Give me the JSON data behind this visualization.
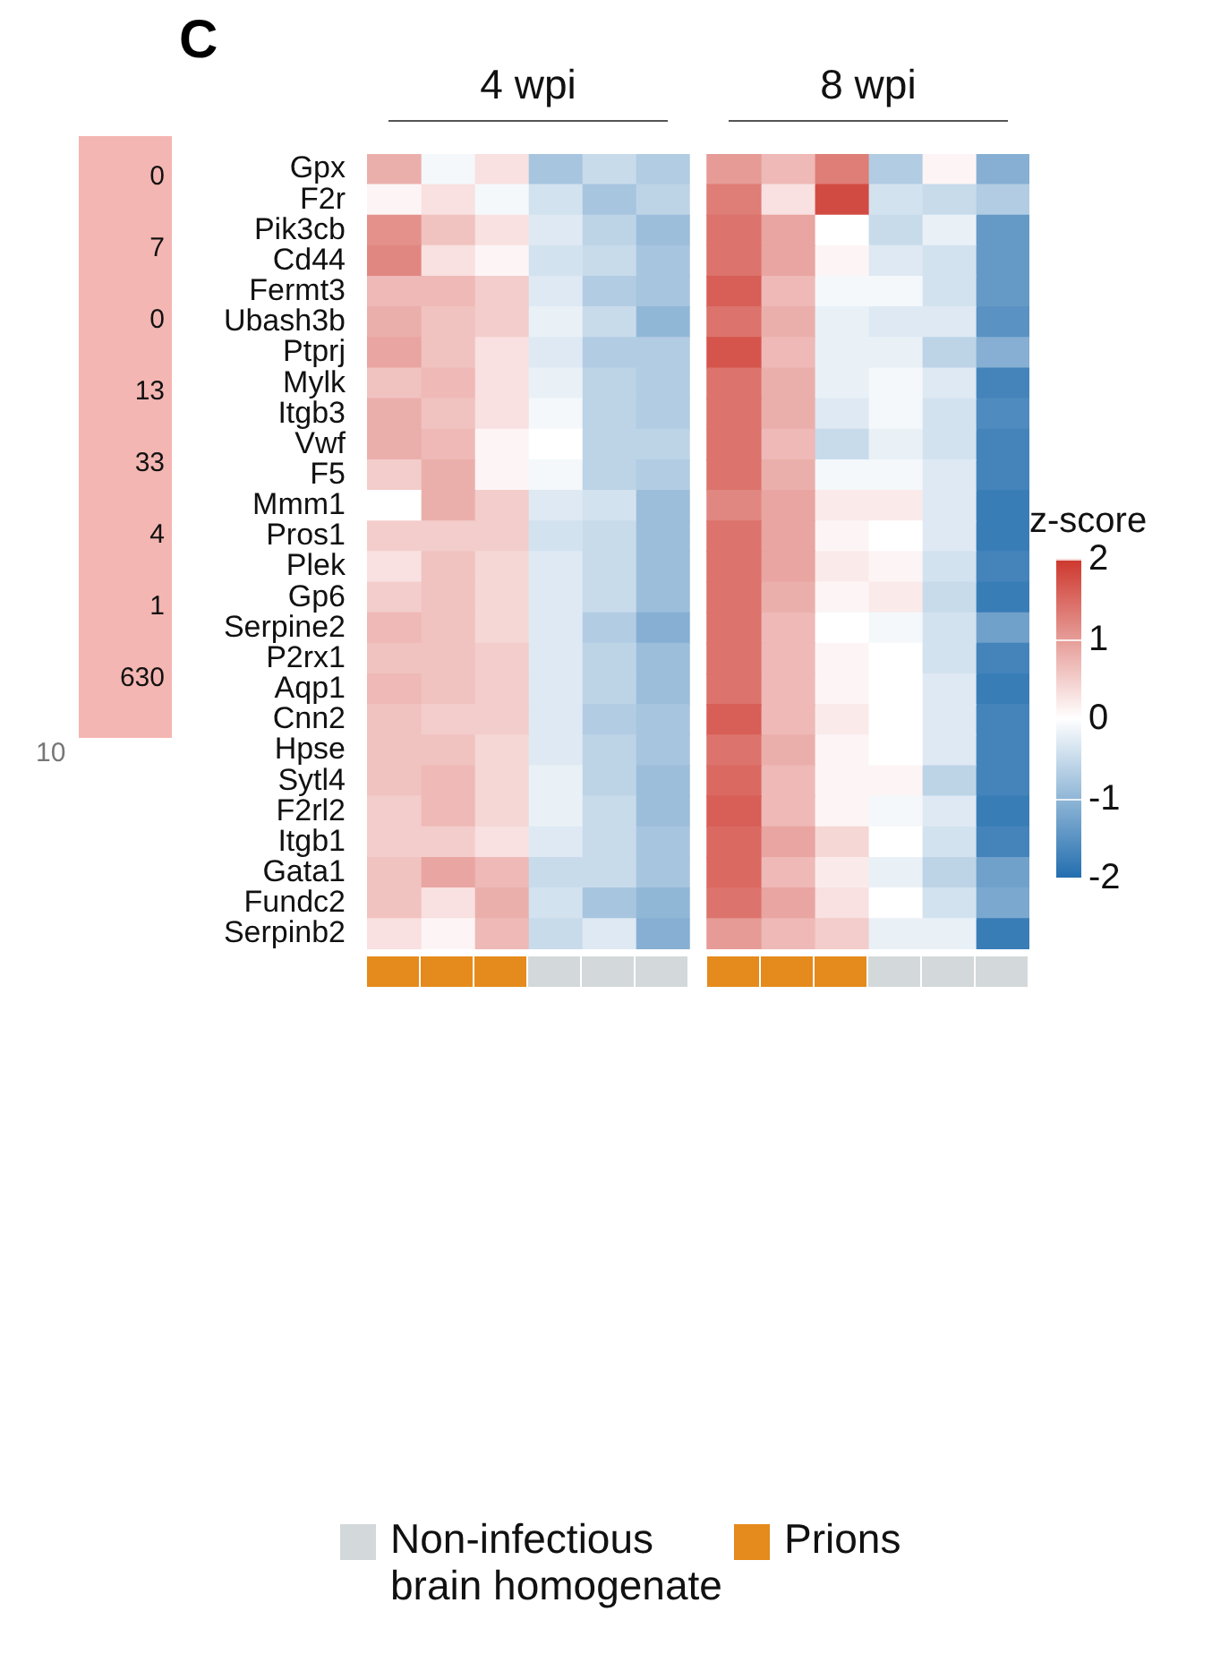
{
  "chart_data": [
    {
      "type": "other",
      "annotations": [
        "0",
        "7",
        "0",
        "13",
        "33",
        "4",
        "1",
        "630",
        "10"
      ]
    },
    {
      "type": "heatmap",
      "annotations": [
        "C",
        "4 wpi",
        "8 wpi",
        "Non-infectious brain homogenate",
        "Prions"
      ],
      "clabel": "z-score",
      "tick_labels": "y",
      "categories": [
        null,
        null,
        null,
        null,
        null,
        null,
        null,
        null,
        null,
        null,
        null,
        null
      ],
      "y_categories": [
        "Gpx",
        "F2r",
        "Pik3cb",
        "Cd44",
        "Fermt3",
        "Ubash3b",
        "Ptprj",
        "Mylk",
        "Itgb3",
        "Vwf",
        "F5",
        "Mmm1",
        "Pros1",
        "Plek",
        "Gp6",
        "Serpine2",
        "P2rx1",
        "Aqp1",
        "Cnn2",
        "Hpse",
        "Sytl4",
        "F2rl2",
        "Itgb1",
        "Gata1",
        "Fundc2",
        "Serpinb2"
      ],
      "cells": [
        [
          0.8,
          -0.1,
          0.3,
          -0.8,
          -0.5,
          -0.7,
          1.0,
          0.7,
          1.3,
          -0.7,
          0.1,
          -1.1
        ],
        [
          0.1,
          0.3,
          -0.1,
          -0.4,
          -0.8,
          -0.6,
          1.3,
          0.3,
          1.8,
          -0.4,
          -0.5,
          -0.7
        ],
        [
          1.1,
          0.6,
          0.3,
          -0.3,
          -0.6,
          -0.9,
          1.4,
          0.9,
          0.0,
          -0.5,
          -0.2,
          -1.4
        ],
        [
          1.2,
          0.3,
          0.1,
          -0.4,
          -0.5,
          -0.8,
          1.4,
          0.9,
          0.1,
          -0.3,
          -0.4,
          -1.4
        ],
        [
          0.7,
          0.7,
          0.5,
          -0.3,
          -0.7,
          -0.8,
          1.6,
          0.7,
          -0.1,
          -0.1,
          -0.4,
          -1.4
        ],
        [
          0.8,
          0.6,
          0.5,
          -0.2,
          -0.5,
          -1.0,
          1.4,
          0.8,
          -0.2,
          -0.3,
          -0.3,
          -1.5
        ],
        [
          0.9,
          0.6,
          0.3,
          -0.3,
          -0.7,
          -0.7,
          1.7,
          0.7,
          -0.2,
          -0.2,
          -0.6,
          -1.1
        ],
        [
          0.6,
          0.7,
          0.3,
          -0.2,
          -0.6,
          -0.7,
          1.4,
          0.8,
          -0.2,
          -0.1,
          -0.3,
          -1.7
        ],
        [
          0.8,
          0.6,
          0.3,
          -0.1,
          -0.6,
          -0.7,
          1.4,
          0.8,
          -0.3,
          -0.1,
          -0.4,
          -1.6
        ],
        [
          0.8,
          0.7,
          0.1,
          0.0,
          -0.6,
          -0.6,
          1.4,
          0.7,
          -0.5,
          -0.2,
          -0.4,
          -1.7
        ],
        [
          0.5,
          0.8,
          0.1,
          -0.1,
          -0.6,
          -0.7,
          1.4,
          0.8,
          -0.1,
          -0.1,
          -0.3,
          -1.7
        ],
        [
          0.0,
          0.8,
          0.5,
          -0.3,
          -0.4,
          -0.9,
          1.2,
          0.9,
          0.2,
          0.2,
          -0.3,
          -1.8
        ],
        [
          0.5,
          0.5,
          0.5,
          -0.4,
          -0.5,
          -0.9,
          1.4,
          0.9,
          0.1,
          0.0,
          -0.3,
          -1.8
        ],
        [
          0.3,
          0.6,
          0.4,
          -0.3,
          -0.5,
          -0.9,
          1.4,
          0.9,
          0.2,
          0.1,
          -0.4,
          -1.7
        ],
        [
          0.5,
          0.6,
          0.4,
          -0.3,
          -0.5,
          -0.9,
          1.4,
          0.8,
          0.1,
          0.2,
          -0.5,
          -1.8
        ],
        [
          0.7,
          0.6,
          0.4,
          -0.3,
          -0.7,
          -1.1,
          1.4,
          0.7,
          0.0,
          -0.1,
          -0.4,
          -1.3
        ],
        [
          0.6,
          0.6,
          0.5,
          -0.3,
          -0.6,
          -0.9,
          1.4,
          0.7,
          0.1,
          0.0,
          -0.4,
          -1.7
        ],
        [
          0.7,
          0.6,
          0.5,
          -0.3,
          -0.6,
          -0.9,
          1.4,
          0.7,
          0.1,
          0.0,
          -0.3,
          -1.8
        ],
        [
          0.6,
          0.5,
          0.5,
          -0.3,
          -0.7,
          -0.8,
          1.6,
          0.7,
          0.2,
          0.0,
          -0.3,
          -1.7
        ],
        [
          0.6,
          0.6,
          0.4,
          -0.3,
          -0.6,
          -0.8,
          1.4,
          0.8,
          0.1,
          0.0,
          -0.3,
          -1.7
        ],
        [
          0.6,
          0.7,
          0.4,
          -0.2,
          -0.6,
          -0.9,
          1.5,
          0.7,
          0.1,
          0.1,
          -0.6,
          -1.7
        ],
        [
          0.5,
          0.7,
          0.4,
          -0.2,
          -0.5,
          -0.9,
          1.6,
          0.7,
          0.1,
          -0.1,
          -0.3,
          -1.8
        ],
        [
          0.5,
          0.5,
          0.3,
          -0.3,
          -0.5,
          -0.8,
          1.5,
          0.9,
          0.4,
          0.0,
          -0.4,
          -1.7
        ],
        [
          0.6,
          0.9,
          0.7,
          -0.5,
          -0.5,
          -0.8,
          1.5,
          0.7,
          0.2,
          -0.2,
          -0.6,
          -1.3
        ],
        [
          0.6,
          0.3,
          0.8,
          -0.4,
          -0.8,
          -1.0,
          1.4,
          0.9,
          0.3,
          0.0,
          -0.4,
          -1.2
        ],
        [
          0.3,
          0.1,
          0.7,
          -0.5,
          -0.3,
          -1.1,
          1.0,
          0.7,
          0.5,
          -0.2,
          -0.2,
          -1.8
        ]
      ],
      "clim": [
        -2,
        2
      ],
      "cticks": [
        -2,
        -1,
        0,
        1,
        2
      ]
    }
  ]
}
